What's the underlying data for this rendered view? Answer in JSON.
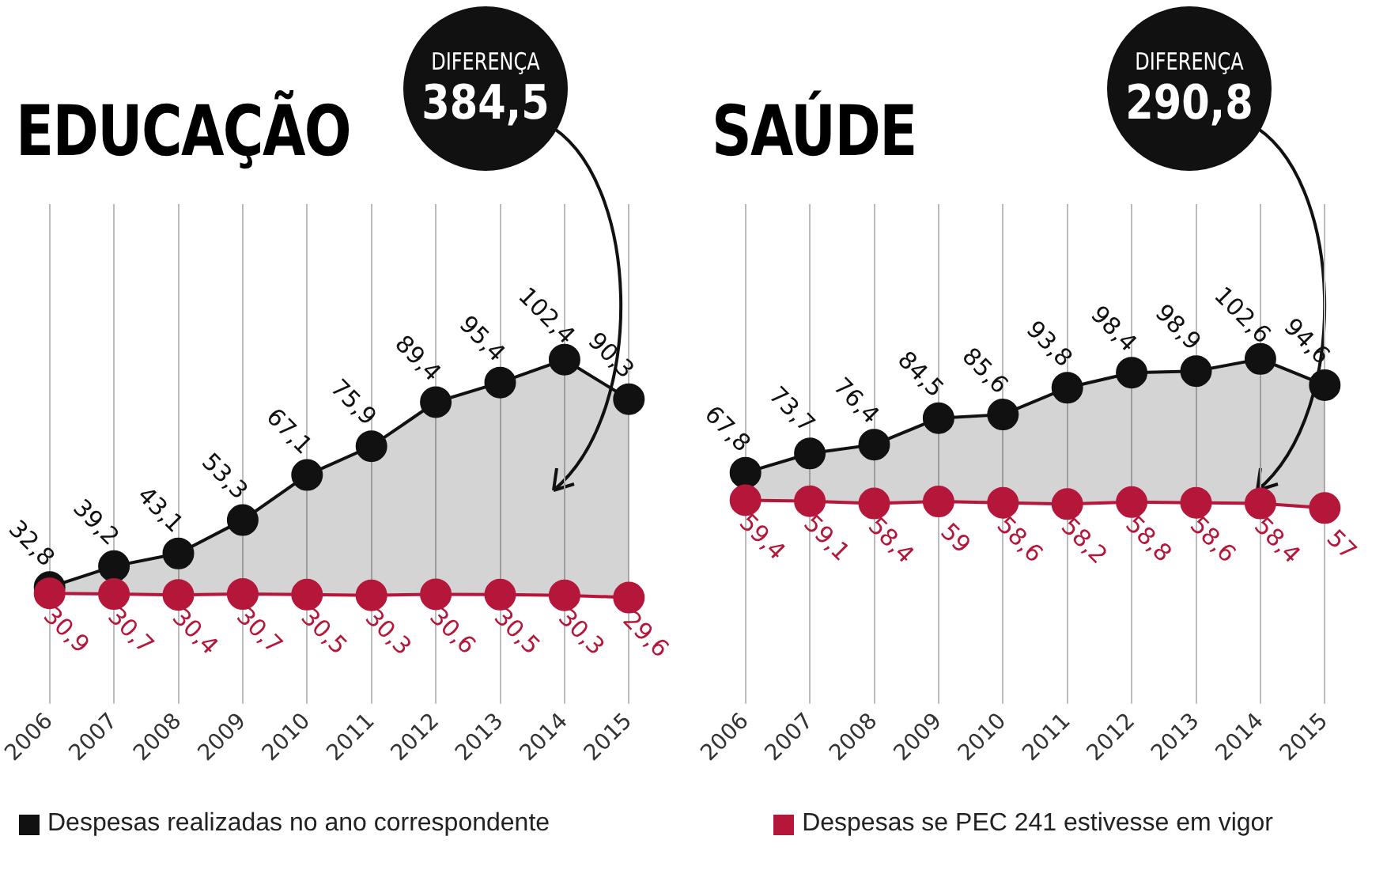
{
  "chart_data": [
    {
      "type": "line",
      "title": "EDUCAÇÃO",
      "annotations": [
        "DIFERENÇA",
        "384,5"
      ],
      "categories": [
        "2006",
        "2007",
        "2008",
        "2009",
        "2010",
        "2011",
        "2012",
        "2013",
        "2014",
        "2015"
      ],
      "series": [
        {
          "name": "Despesas realizadas no ano correspondente",
          "type": "area",
          "color": "#111111",
          "values": [
            32.8,
            39.2,
            43.1,
            53.3,
            67.1,
            75.9,
            89.4,
            95.4,
            102.4,
            90.3
          ],
          "value_labels": [
            "32,8",
            "39,2",
            "43,1",
            "53,3",
            "67,1",
            "75,9",
            "89,4",
            "95,4",
            "102,4",
            "90,3"
          ]
        },
        {
          "name": "Despesas se PEC 241 estivesse em vigor",
          "type": "line",
          "color": "#b5173a",
          "values": [
            30.9,
            30.7,
            30.4,
            30.7,
            30.5,
            30.3,
            30.6,
            30.5,
            30.3,
            29.6
          ],
          "value_labels": [
            "30,9",
            "30,7",
            "30,4",
            "30,7",
            "30,5",
            "30,3",
            "30,6",
            "30,5",
            "30,3",
            "29,6"
          ]
        }
      ],
      "ylim": [
        0,
        150
      ],
      "tick_labels": "x",
      "grid": "x",
      "marker": "circle",
      "legend": "bottom"
    },
    {
      "type": "line",
      "title": "SAÚDE",
      "annotations": [
        "DIFERENÇA",
        "290,8"
      ],
      "categories": [
        "2006",
        "2007",
        "2008",
        "2009",
        "2010",
        "2011",
        "2012",
        "2013",
        "2014",
        "2015"
      ],
      "series": [
        {
          "type": "area",
          "color": "#111111",
          "values": [
            67.8,
            73.7,
            76.4,
            84.5,
            85.6,
            93.8,
            98.4,
            98.9,
            102.6,
            94.6
          ],
          "value_labels": [
            "67,8",
            "73,7",
            "76,4",
            "84,5",
            "85,6",
            "93,8",
            "98,4",
            "98,9",
            "102,6",
            "94,6"
          ]
        },
        {
          "type": "line",
          "color": "#b5173a",
          "values": [
            59.4,
            59.1,
            58.4,
            59,
            58.6,
            58.2,
            58.8,
            58.6,
            58.4,
            57
          ],
          "value_labels": [
            "59,4",
            "59,1",
            "58,4",
            "59",
            "58,6",
            "58,2",
            "58,8",
            "58,6",
            "58,4",
            "57"
          ]
        }
      ],
      "ylim": [
        0,
        150
      ],
      "tick_labels": "x",
      "grid": "x",
      "marker": "circle"
    }
  ]
}
